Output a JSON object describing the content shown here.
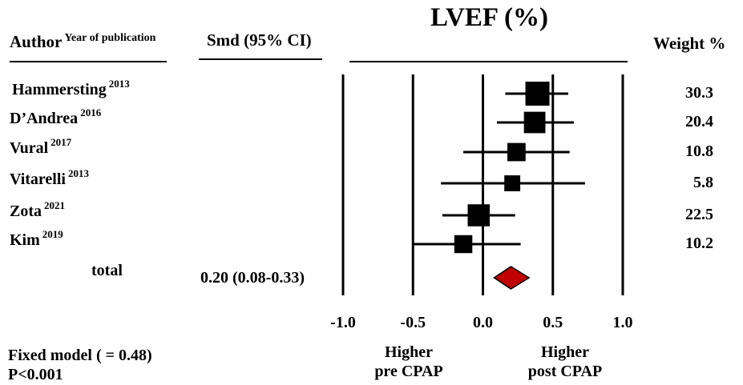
{
  "header": {
    "author": "Author",
    "year_sup": "Year of publication",
    "smd": "Smd (95% CI)",
    "weight": "Weight %"
  },
  "chart_data": {
    "type": "forest",
    "title": "LVEF (%)",
    "xlim": [
      -1.0,
      1.0
    ],
    "x_ticks": [
      "-1.0",
      "-0.5",
      "0.0",
      "0.5",
      "1.0"
    ],
    "vlines": [
      -1.0,
      -0.5,
      0.0,
      0.5,
      1.0
    ],
    "studies": [
      {
        "author": "Hammersting",
        "year": "2013",
        "est": 0.39,
        "lo": 0.16,
        "hi": 0.61,
        "weight": 30.3,
        "weight_label": "30.3"
      },
      {
        "author": "D’Andrea",
        "year": "2016",
        "est": 0.37,
        "lo": 0.1,
        "hi": 0.65,
        "weight": 20.4,
        "weight_label": "20.4"
      },
      {
        "author": "Vural",
        "year": "2017",
        "est": 0.24,
        "lo": -0.14,
        "hi": 0.62,
        "weight": 10.8,
        "weight_label": "10.8"
      },
      {
        "author": "Vitarelli",
        "year": "2013",
        "est": 0.21,
        "lo": -0.3,
        "hi": 0.73,
        "weight": 5.8,
        "weight_label": "5.8"
      },
      {
        "author": "Zota",
        "year": "2021",
        "est": -0.03,
        "lo": -0.29,
        "hi": 0.23,
        "weight": 22.5,
        "weight_label": "22.5"
      },
      {
        "author": "Kim",
        "year": "2019",
        "est": -0.14,
        "lo": -0.5,
        "hi": 0.27,
        "weight": 10.2,
        "weight_label": "10.2"
      }
    ],
    "total": {
      "label": "total",
      "est": 0.2,
      "lo": 0.08,
      "hi": 0.33,
      "ci_text": "0.20 (0.08-0.33)"
    },
    "direction_left": [
      "Higher",
      "pre CPAP"
    ],
    "direction_right": [
      "Higher",
      "post CPAP"
    ],
    "colors": {
      "diamond": "#c00000",
      "marks": "#000000"
    }
  },
  "footer": {
    "model": "Fixed model (   = 0.48)",
    "p_value": "P<0.001"
  }
}
